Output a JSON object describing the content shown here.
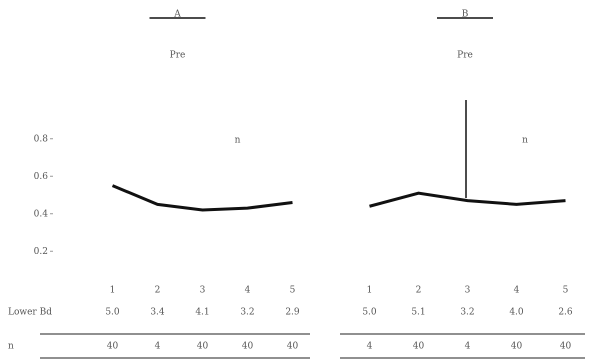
{
  "chart_data": [
    {
      "type": "line",
      "title": "Pre",
      "legend": "A",
      "annotation": "n",
      "categories": [
        "1",
        "2",
        "3",
        "4",
        "5"
      ],
      "series": [
        {
          "name": "A",
          "color": "#111",
          "values": [
            0.55,
            0.45,
            0.42,
            0.43,
            0.46
          ]
        }
      ],
      "ylim": [
        0.1,
        0.9
      ],
      "yticks": [
        0.2,
        0.4,
        0.6,
        0.8
      ],
      "table": {
        "rows": [
          {
            "label": "Lower Bd",
            "values": [
              "5.0",
              "3.4",
              "4.1",
              "3.2",
              "2.9"
            ]
          },
          {
            "label": "n",
            "values": [
              "40",
              "4",
              "40",
              "40",
              "40"
            ]
          }
        ]
      }
    },
    {
      "type": "line",
      "title": "Pre",
      "legend": "B",
      "annotation": "n",
      "categories": [
        "1",
        "2",
        "3",
        "4",
        "5"
      ],
      "series": [
        {
          "name": "B",
          "color": "#111",
          "values": [
            0.44,
            0.51,
            0.47,
            0.45,
            0.47
          ]
        }
      ],
      "ylim": [
        0.1,
        0.9
      ],
      "yticks": [],
      "table": {
        "rows": [
          {
            "label": "",
            "values": [
              "5.0",
              "5.1",
              "3.2",
              "4.0",
              "2.6"
            ]
          },
          {
            "label": "",
            "values": [
              "4",
              "40",
              "4",
              "40",
              "40"
            ]
          }
        ]
      }
    }
  ]
}
